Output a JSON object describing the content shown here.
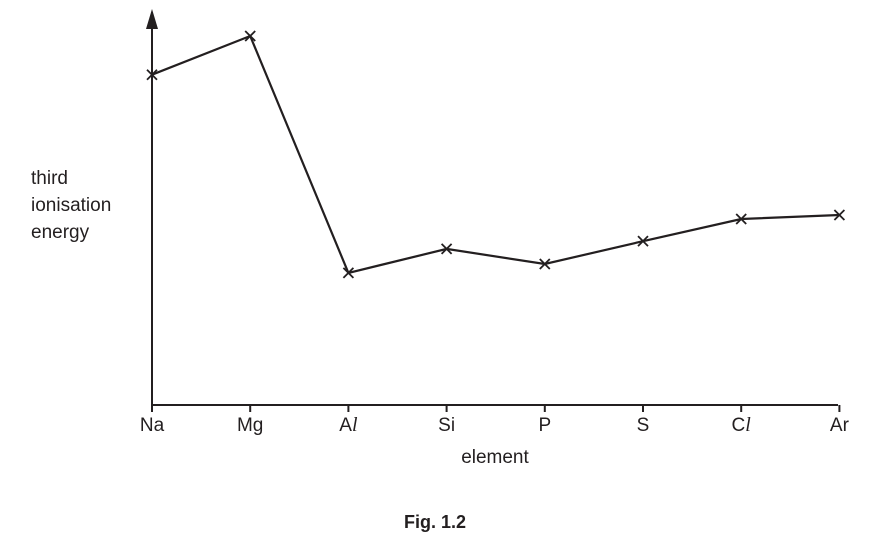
{
  "chart_data": {
    "type": "line",
    "title": "",
    "xlabel": "element",
    "ylabel_lines": [
      "third",
      "ionisation",
      "energy"
    ],
    "categories": [
      "Na",
      "Mg",
      "Al",
      "Si",
      "P",
      "S",
      "Cl",
      "Ar"
    ],
    "category_labels": [
      {
        "main": "Na",
        "italic": ""
      },
      {
        "main": "Mg",
        "italic": ""
      },
      {
        "main": "A",
        "italic": "l"
      },
      {
        "main": "Si",
        "italic": ""
      },
      {
        "main": "P",
        "italic": ""
      },
      {
        "main": "S",
        "italic": ""
      },
      {
        "main": "C",
        "italic": "l"
      },
      {
        "main": "Ar",
        "italic": ""
      }
    ],
    "values": [
      89.5,
      100,
      35.8,
      42.3,
      38.2,
      44.4,
      50.4,
      51.5
    ],
    "ylim": [
      0,
      110
    ],
    "y_axis_ticks": false,
    "grid": false,
    "marker": "x",
    "line_color": "#231f20"
  },
  "caption": "Fig. 1.2"
}
